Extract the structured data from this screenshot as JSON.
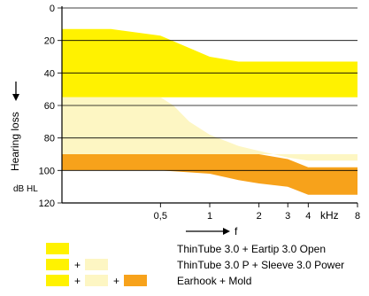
{
  "chart_data": {
    "type": "area",
    "ylabel": "Hearing loss",
    "yunit": "dB HL",
    "xlabel": "f",
    "xunit": "kHz",
    "x_ticks": [
      {
        "value": 0.5,
        "label": "0,5"
      },
      {
        "value": 1,
        "label": "1"
      },
      {
        "value": 2,
        "label": "2"
      },
      {
        "value": 3,
        "label": "3"
      },
      {
        "value": 4,
        "label": "4"
      },
      {
        "value": 8,
        "label": "8"
      }
    ],
    "y_ticks": [
      {
        "value": 0,
        "label": "0"
      },
      {
        "value": 20,
        "label": "20"
      },
      {
        "value": 40,
        "label": "40"
      },
      {
        "value": 60,
        "label": "60"
      },
      {
        "value": 80,
        "label": "80"
      },
      {
        "value": 100,
        "label": "100"
      },
      {
        "value": 120,
        "label": "120"
      }
    ],
    "xlim": [
      0.125,
      8
    ],
    "ylim": [
      0,
      120
    ],
    "y_inverted": true,
    "x_log_scale": true,
    "series": [
      {
        "name": "ThinTube 3.0 + Eartip 3.0 Open",
        "color": "#fff200",
        "x": [
          0.125,
          0.25,
          0.5,
          1,
          1.5,
          2,
          3,
          4,
          8
        ],
        "y_top": [
          13,
          13,
          17,
          30,
          33,
          33,
          33,
          33,
          33
        ],
        "y_bottom": [
          55,
          55,
          55,
          55,
          55,
          55,
          55,
          55,
          55
        ]
      },
      {
        "name": "ThinTube 3.0 P + Sleeve 3.0 Power",
        "color": "#fdf6c3",
        "x": [
          0.125,
          0.25,
          0.5,
          0.6,
          0.75,
          1,
          1.5,
          2,
          3,
          4,
          8
        ],
        "y_top": [
          55,
          55,
          55,
          60,
          70,
          78,
          85,
          88,
          92,
          94,
          94
        ],
        "y_bottom": [
          90,
          90,
          90,
          90,
          90,
          90,
          90,
          90,
          90,
          90,
          90
        ]
      },
      {
        "name": "Earhook + Mold",
        "color": "#f7a21b",
        "x": [
          0.125,
          0.25,
          0.5,
          1,
          1.5,
          2,
          3,
          4,
          8
        ],
        "y_top": [
          90,
          90,
          90,
          90,
          90,
          90,
          93,
          98,
          98
        ],
        "y_bottom": [
          100,
          100,
          100,
          102,
          106,
          108,
          110,
          115,
          115
        ]
      }
    ]
  },
  "legend": {
    "plus": "+",
    "items": [
      {
        "label": "ThinTube 3.0 + Eartip 3.0 Open"
      },
      {
        "label": "ThinTube 3.0 P + Sleeve 3.0 Power"
      },
      {
        "label": "Earhook + Mold"
      }
    ]
  },
  "colors": {
    "open": "#fff200",
    "power": "#fdf6c3",
    "mold": "#f7a21b",
    "axis": "#000000"
  }
}
